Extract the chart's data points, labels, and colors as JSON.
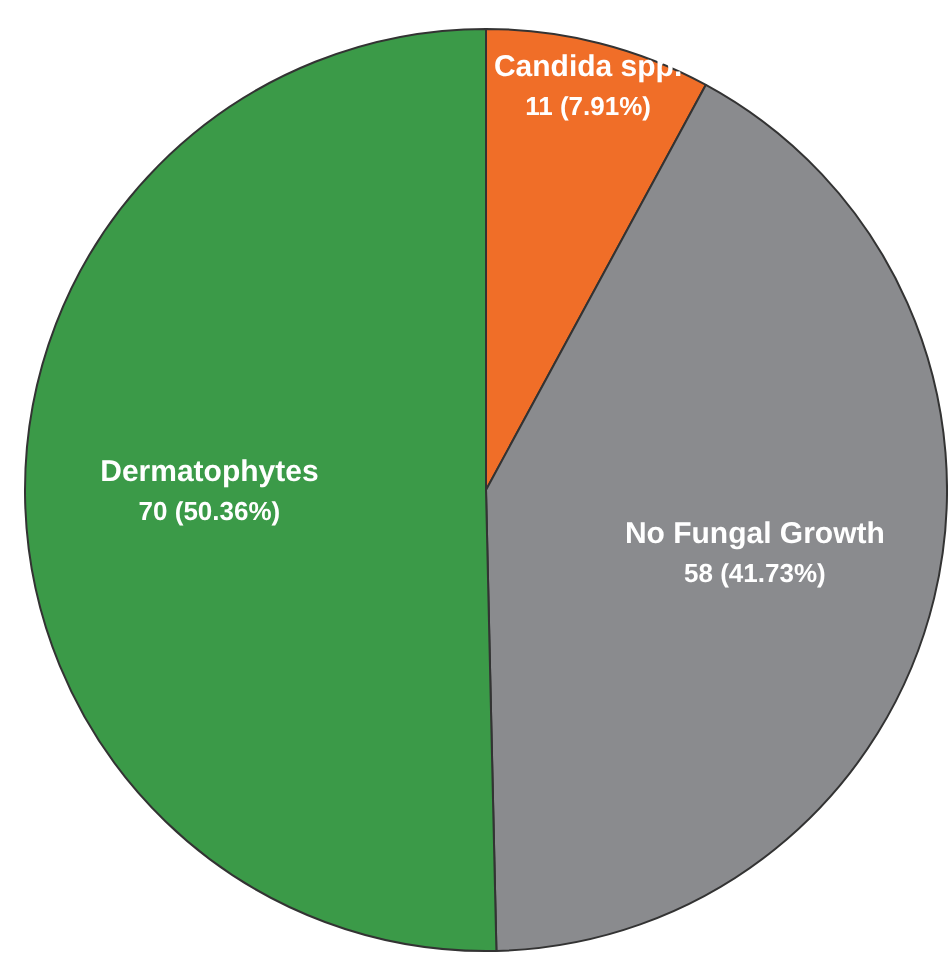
{
  "chart_data": {
    "type": "pie",
    "categories": [
      "Candida spp.",
      "No Fungal Growth",
      "Dermatophytes"
    ],
    "values": [
      11,
      58,
      70
    ],
    "colors": [
      "#f06e28",
      "#8a8b8e",
      "#3b9a48"
    ],
    "value_labels": [
      "11 (7.91%)",
      "58 (41.73%)",
      "70 (50.36%)"
    ]
  }
}
